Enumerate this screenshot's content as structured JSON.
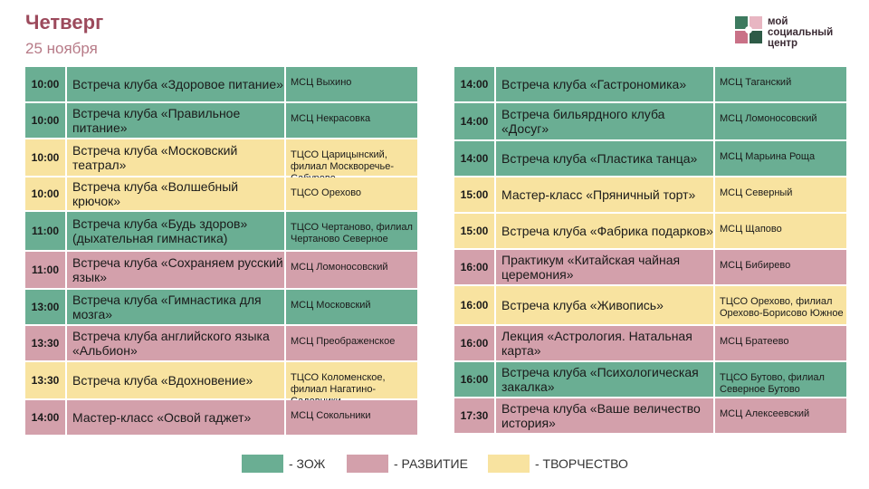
{
  "header": {
    "day": "Четверг",
    "date": "25 ноября"
  },
  "logo": {
    "line1": "мой",
    "line2": "социальный",
    "line3": "центр"
  },
  "colors": {
    "zozh": "#6aae93",
    "razvitie": "#d3a0ab",
    "tvorchestvo": "#f8e3a0",
    "title": "#9c4a5c"
  },
  "left": [
    {
      "time": "10:00",
      "event": "Встреча клуба «Здоровое питание»",
      "place": "МСЦ Выхино",
      "cat": "zozh"
    },
    {
      "time": "10:00",
      "event": "Встреча клуба «Правильное питание»",
      "place": "МСЦ Некрасовка",
      "cat": "zozh"
    },
    {
      "time": "10:00",
      "event": "Встреча клуба «Московский театрал»",
      "place": "ТЦСО Царицынский, филиал Москворечье-Сабурово",
      "cat": "tvorchestvo"
    },
    {
      "time": "10:00",
      "event": "Встреча клуба «Волшебный крючок»",
      "place": "ТЦСО Орехово",
      "cat": "tvorchestvo"
    },
    {
      "time": "11:00",
      "event": "Встреча клуба «Будь здоров» (дыхательная гимнастика)",
      "place": "ТЦСО Чертаново, филиал Чертаново Северное",
      "cat": "zozh"
    },
    {
      "time": "11:00",
      "event": "Встреча клуба «Сохраняем русский язык»",
      "place": "МСЦ Ломоносовский",
      "cat": "razvitie"
    },
    {
      "time": "13:00",
      "event": "Встреча клуба «Гимнастика для мозга»",
      "place": "МСЦ Московский",
      "cat": "zozh"
    },
    {
      "time": "13:30",
      "event": "Встреча клуба английского языка «Альбион»",
      "place": "МСЦ Преображенское",
      "cat": "razvitie"
    },
    {
      "time": "13:30",
      "event": "Встреча клуба «Вдохновение»",
      "place": "ТЦСО Коломенское, филиал Нагатино-Садовники",
      "cat": "tvorchestvo"
    },
    {
      "time": "14:00",
      "event": "Мастер-класс «Освой гаджет»",
      "place": "МСЦ Сокольники",
      "cat": "razvitie"
    }
  ],
  "right": [
    {
      "time": "14:00",
      "event": "Встреча клуба «Гастрономика»",
      "place": "МСЦ Таганский",
      "cat": "zozh"
    },
    {
      "time": "14:00",
      "event": "Встреча бильярдного клуба «Досуг»",
      "place": "МСЦ Ломоносовский",
      "cat": "zozh"
    },
    {
      "time": "14:00",
      "event": "Встреча клуба «Пластика танца»",
      "place": "МСЦ Марьина Роща",
      "cat": "zozh"
    },
    {
      "time": "15:00",
      "event": "Мастер-класс «Пряничный торт»",
      "place": "МСЦ Северный",
      "cat": "tvorchestvo"
    },
    {
      "time": "15:00",
      "event": "Встреча клуба «Фабрика подарков»",
      "place": "МСЦ Щапово",
      "cat": "tvorchestvo"
    },
    {
      "time": "16:00",
      "event": "Практикум «Китайская чайная церемония»",
      "place": "МСЦ Бибирево",
      "cat": "razvitie"
    },
    {
      "time": "16:00",
      "event": "Встреча клуба «Живопись»",
      "place": "ТЦСО Орехово, филиал Орехово-Борисово Южное",
      "cat": "tvorchestvo"
    },
    {
      "time": "16:00",
      "event": "Лекция «Астрология. Натальная карта»",
      "place": "МСЦ Братеево",
      "cat": "razvitie"
    },
    {
      "time": "16:00",
      "event": "Встреча клуба «Психологическая закалка»",
      "place": "ТЦСО Бутово, филиал Северное Бутово",
      "cat": "zozh"
    },
    {
      "time": "17:30",
      "event": "Встреча клуба «Ваше величество история»",
      "place": "МСЦ Алексеевский",
      "cat": "razvitie"
    }
  ],
  "legend": [
    {
      "label": "- ЗОЖ",
      "cat": "zozh"
    },
    {
      "label": "- РАЗВИТИЕ",
      "cat": "razvitie"
    },
    {
      "label": "- ТВОРЧЕСТВО",
      "cat": "tvorchestvo"
    }
  ]
}
